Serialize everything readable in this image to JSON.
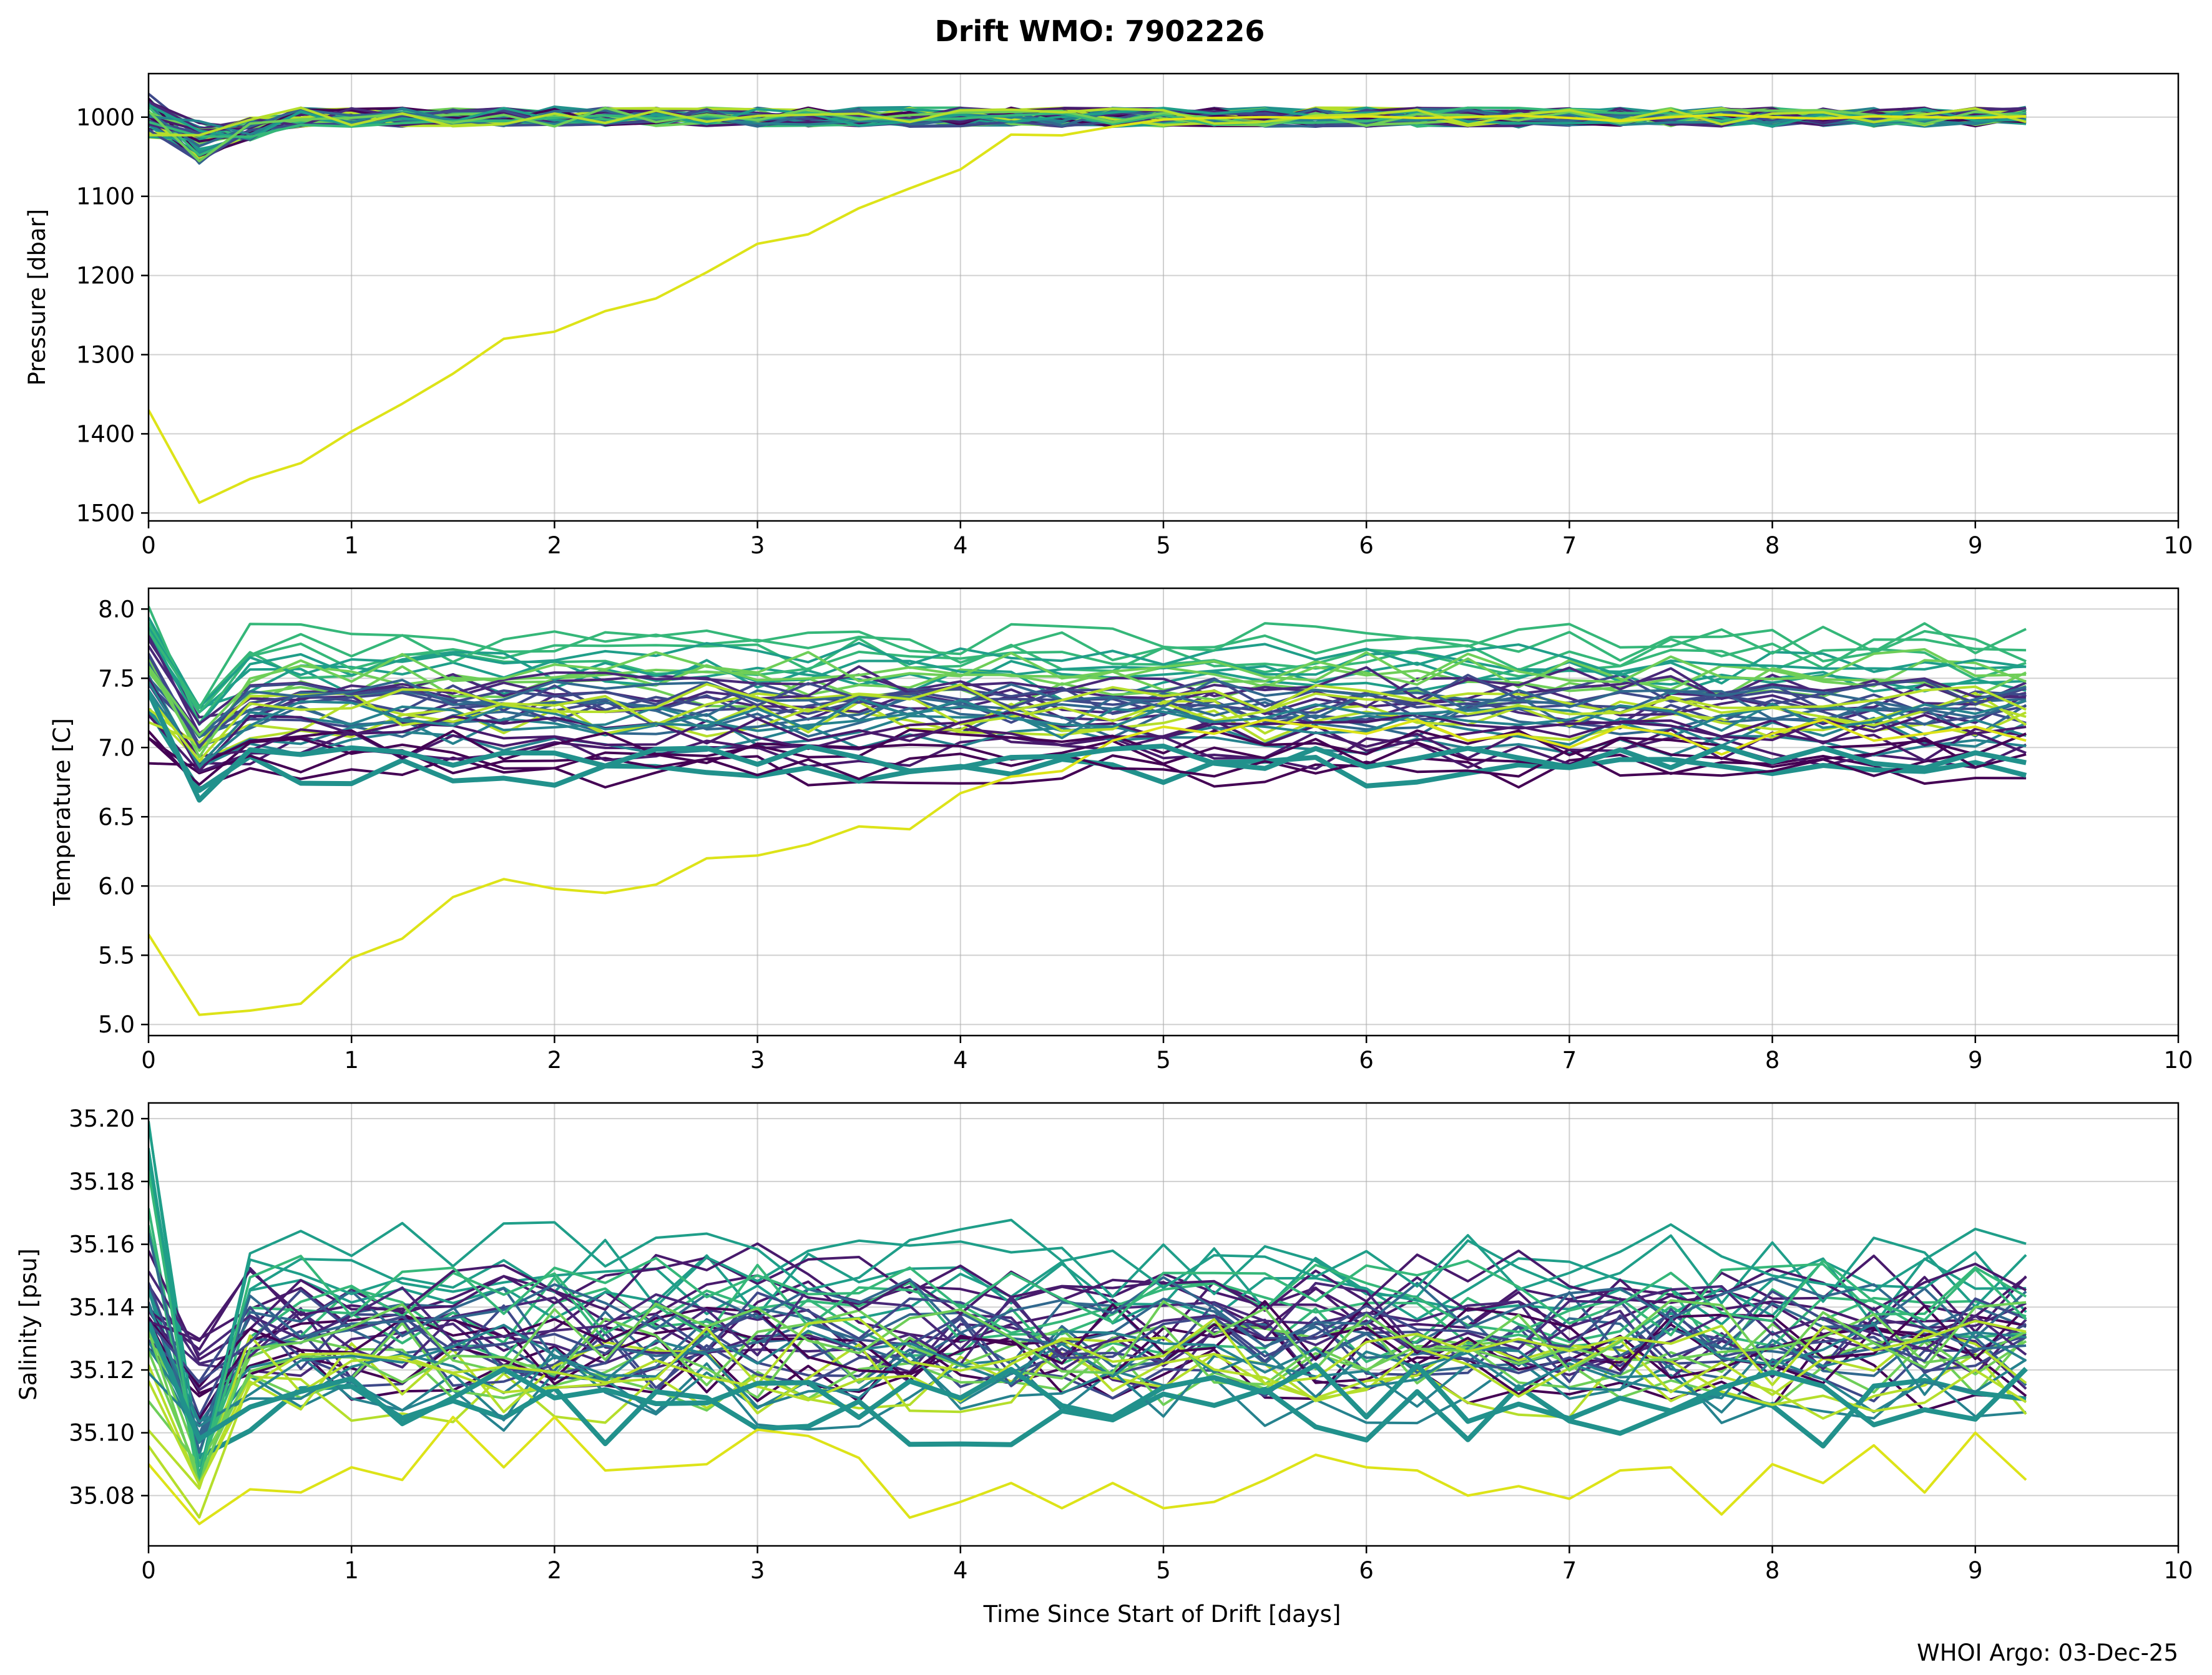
{
  "figure": {
    "title": "Drift WMO: 7902226",
    "xlabel": "Time Since Start of Drift [days]",
    "footer": "WHOI Argo: 03-Dec-25"
  },
  "chart_data": [
    {
      "type": "line",
      "panel": "pressure",
      "ylabel": "Pressure [dbar]",
      "xlim": [
        0,
        10
      ],
      "ylim": [
        1510,
        945
      ],
      "inverted_y": true,
      "grid": true,
      "xticks": [
        "0",
        "1",
        "2",
        "3",
        "4",
        "5",
        "6",
        "7",
        "8",
        "9",
        "10"
      ],
      "yticks": [
        1000,
        1100,
        1200,
        1300,
        1400,
        1500
      ],
      "ytick_labels": [
        "1000",
        "1100",
        "1200",
        "1300",
        "1400",
        "1500"
      ],
      "x_step": 0.25,
      "base_level": 1000,
      "noise_amplitude": 12,
      "dip": {
        "x": 0.25,
        "value": 1040
      },
      "series": [
        {
          "color": "#440154",
          "width": 4
        },
        {
          "color": "#481a6c",
          "width": 4
        },
        {
          "color": "#482878",
          "width": 4
        },
        {
          "color": "#3e4989",
          "width": 4
        },
        {
          "color": "#31688e",
          "width": 4
        },
        {
          "color": "#26828e",
          "width": 4
        },
        {
          "color": "#1f9e89",
          "width": 4
        },
        {
          "color": "#35b779",
          "width": 4
        },
        {
          "color": "#6ece58",
          "width": 4
        },
        {
          "color": "#b5de2b",
          "width": 4
        },
        {
          "color": "#21918c",
          "width": 8
        }
      ],
      "outlier": {
        "color": "#dde318",
        "x": [
          0,
          0.25,
          0.5,
          0.75,
          1,
          1.25,
          1.5,
          1.75,
          2,
          2.25,
          2.5,
          2.75,
          3,
          3.25,
          3.5,
          3.75,
          4,
          4.25,
          4.5,
          4.75,
          5,
          5.25,
          5.5,
          5.75,
          6,
          6.25,
          6.5,
          6.75,
          7,
          7.25,
          7.5,
          7.75,
          8,
          8.25,
          8.5,
          8.75,
          9,
          9.25
        ],
        "values": [
          1370,
          1487,
          1457,
          1437,
          1397,
          1362,
          1324,
          1280,
          1271,
          1245,
          1229,
          1196,
          1160,
          1148,
          1115,
          1090,
          1066,
          1022,
          1023,
          1012,
          1003,
          1001,
          1000,
          1001,
          999,
          1001,
          1000,
          998,
          1001,
          1005,
          1000,
          997,
          1000,
          1002,
          999,
          1000,
          1001,
          999
        ]
      }
    },
    {
      "type": "line",
      "panel": "temperature",
      "ylabel": "Temperature [C]",
      "xlim": [
        0,
        10
      ],
      "ylim": [
        4.92,
        8.15
      ],
      "grid": true,
      "xticks": [
        "0",
        "1",
        "2",
        "3",
        "4",
        "5",
        "6",
        "7",
        "8",
        "9",
        "10"
      ],
      "yticks": [
        5.0,
        5.5,
        6.0,
        6.5,
        7.0,
        7.5,
        8.0
      ],
      "ytick_labels": [
        "5.0",
        "5.5",
        "6.0",
        "6.5",
        "7.0",
        "7.5",
        "8.0"
      ],
      "x_step": 0.25,
      "noise_amplitude": 0.12,
      "series": [
        {
          "color": "#440154",
          "level": 6.92,
          "start": 7.0,
          "dip": 6.8,
          "width": 4
        },
        {
          "color": "#481a6c",
          "level": 7.05,
          "start": 7.35,
          "dip": 6.9,
          "width": 4
        },
        {
          "color": "#482878",
          "level": 7.38,
          "start": 7.7,
          "dip": 7.15,
          "width": 4
        },
        {
          "color": "#3e4989",
          "level": 7.32,
          "start": 7.6,
          "dip": 7.1,
          "width": 4
        },
        {
          "color": "#31688e",
          "level": 7.28,
          "start": 7.5,
          "dip": 7.0,
          "width": 4
        },
        {
          "color": "#26828e",
          "level": 7.15,
          "start": 7.45,
          "dip": 6.95,
          "width": 4
        },
        {
          "color": "#1f9e89",
          "level": 7.55,
          "start": 7.85,
          "dip": 7.2,
          "width": 4
        },
        {
          "color": "#35b779",
          "level": 7.7,
          "start": 7.9,
          "dip": 7.25,
          "width": 4
        },
        {
          "color": "#6ece58",
          "level": 7.5,
          "start": 7.6,
          "dip": 7.0,
          "width": 4
        },
        {
          "color": "#b5de2b",
          "level": 7.25,
          "start": 7.3,
          "dip": 6.95,
          "width": 4
        },
        {
          "color": "#21918c",
          "level": 6.92,
          "start": 7.4,
          "dip": 6.62,
          "width": 8
        }
      ],
      "outlier": {
        "color": "#dde318",
        "x": [
          0,
          0.25,
          0.5,
          0.75,
          1,
          1.25,
          1.5,
          1.75,
          2,
          2.25,
          2.5,
          2.75,
          3,
          3.25,
          3.5,
          3.75,
          4,
          4.25,
          4.5,
          4.75,
          5,
          5.25,
          5.5,
          5.75,
          6,
          6.25,
          6.5,
          6.75,
          7,
          7.25,
          7.5,
          7.75,
          8,
          8.25,
          8.5,
          8.75,
          9,
          9.25
        ],
        "values": [
          5.65,
          5.07,
          5.1,
          5.15,
          5.48,
          5.62,
          5.92,
          6.05,
          5.98,
          5.95,
          6.01,
          6.2,
          6.22,
          6.3,
          6.43,
          6.41,
          6.67,
          6.79,
          6.83,
          7.05,
          7.15,
          7.1,
          7.2,
          7.15,
          7.1,
          7.2,
          7.05,
          7.1,
          7.0,
          7.15,
          7.1,
          6.95,
          7.1,
          7.2,
          7.05,
          7.1,
          7.15,
          7.05
        ]
      }
    },
    {
      "type": "line",
      "panel": "salinity",
      "ylabel": "Salinity [psu]",
      "xlim": [
        0,
        10
      ],
      "ylim": [
        35.064,
        35.205
      ],
      "grid": true,
      "xticks": [
        "0",
        "1",
        "2",
        "3",
        "4",
        "5",
        "6",
        "7",
        "8",
        "9",
        "10"
      ],
      "yticks": [
        35.08,
        35.1,
        35.12,
        35.14,
        35.16,
        35.18,
        35.2
      ],
      "ytick_labels": [
        "35.08",
        "35.10",
        "35.12",
        "35.14",
        "35.16",
        "35.18",
        "35.20"
      ],
      "x_step": 0.25,
      "noise_amplitude": 0.012,
      "series": [
        {
          "color": "#440154",
          "level": 35.125,
          "start": 35.14,
          "dip": 35.11,
          "width": 4
        },
        {
          "color": "#481a6c",
          "level": 35.143,
          "start": 35.145,
          "dip": 35.13,
          "width": 4
        },
        {
          "color": "#482878",
          "level": 35.13,
          "start": 35.15,
          "dip": 35.12,
          "width": 4
        },
        {
          "color": "#3e4989",
          "level": 35.128,
          "start": 35.14,
          "dip": 35.11,
          "width": 4
        },
        {
          "color": "#31688e",
          "level": 35.132,
          "start": 35.155,
          "dip": 35.1,
          "width": 4
        },
        {
          "color": "#26828e",
          "level": 35.118,
          "start": 35.13,
          "dip": 35.1,
          "width": 4
        },
        {
          "color": "#1f9e89",
          "level": 35.15,
          "start": 35.19,
          "dip": 35.09,
          "width": 4
        },
        {
          "color": "#35b779",
          "level": 35.14,
          "start": 35.17,
          "dip": 35.09,
          "width": 4
        },
        {
          "color": "#6ece58",
          "level": 35.125,
          "start": 35.12,
          "dip": 35.09,
          "width": 4
        },
        {
          "color": "#b5de2b",
          "level": 35.12,
          "start": 35.11,
          "dip": 35.08,
          "width": 4
        },
        {
          "color": "#21918c",
          "level": 35.112,
          "start": 35.135,
          "dip": 35.098,
          "width": 8
        }
      ],
      "outlier": {
        "color": "#dde318",
        "x": [
          0,
          0.25,
          0.5,
          0.75,
          1,
          1.25,
          1.5,
          1.75,
          2,
          2.25,
          2.5,
          2.75,
          3,
          3.25,
          3.5,
          3.75,
          4,
          4.25,
          4.5,
          4.75,
          5,
          5.25,
          5.5,
          5.75,
          6,
          6.25,
          6.5,
          6.75,
          7,
          7.25,
          7.5,
          7.75,
          8,
          8.25,
          8.5,
          8.75,
          9,
          9.25
        ],
        "values": [
          35.09,
          35.071,
          35.082,
          35.081,
          35.089,
          35.085,
          35.105,
          35.089,
          35.105,
          35.088,
          35.089,
          35.09,
          35.101,
          35.099,
          35.092,
          35.073,
          35.078,
          35.084,
          35.076,
          35.084,
          35.076,
          35.078,
          35.085,
          35.093,
          35.089,
          35.088,
          35.08,
          35.083,
          35.079,
          35.088,
          35.089,
          35.074,
          35.09,
          35.084,
          35.096,
          35.081,
          35.1,
          35.085
        ]
      }
    }
  ]
}
